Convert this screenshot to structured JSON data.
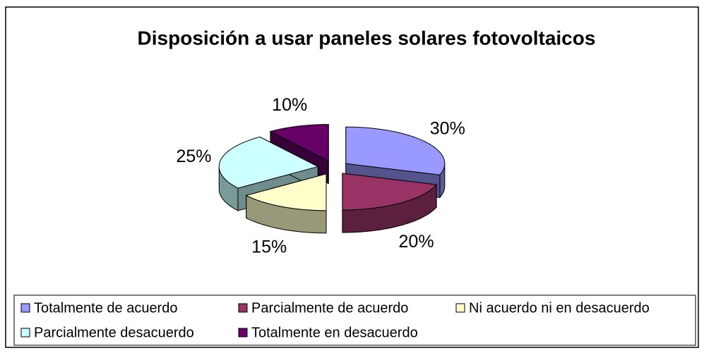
{
  "chart_data": {
    "type": "pie3d",
    "title": "Disposición a usar paneles solares fotovoltaicos",
    "categories": [
      "Totalmente de acuerdo",
      "Parcialmente de acuerdo",
      "Ni acuerdo ni en desacuerdo",
      "Parcialmente desacuerdo",
      "Totalmente en desacuerdo"
    ],
    "values": [
      30,
      20,
      15,
      25,
      10
    ],
    "value_labels": [
      "30%",
      "20%",
      "15%",
      "25%",
      "10%"
    ],
    "colors": [
      "#9999ff",
      "#993366",
      "#ffffcc",
      "#ccffff",
      "#660066"
    ],
    "legend": "bottom"
  }
}
